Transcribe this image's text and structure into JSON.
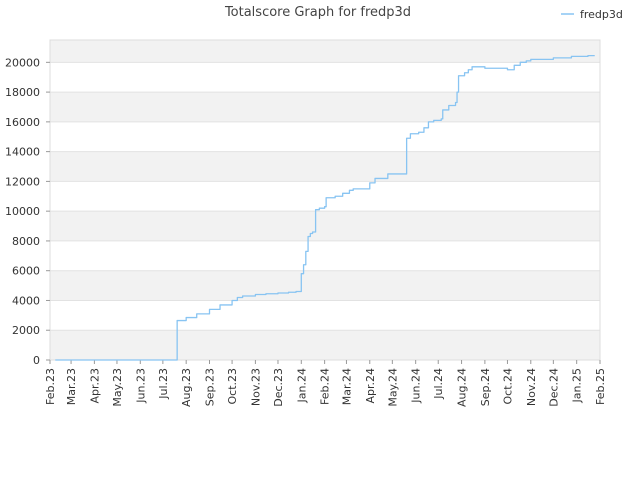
{
  "chart_data": {
    "type": "line",
    "title": "Totalscore Graph for fredp3d",
    "xlabel": "",
    "ylabel": "",
    "x_ticks": [
      "Feb.23",
      "Mar.23",
      "Apr.23",
      "May.23",
      "Jun.23",
      "Jul.23",
      "Aug.23",
      "Sep.23",
      "Oct.23",
      "Nov.23",
      "Dec.23",
      "Jan.24",
      "Feb.24",
      "Mar.24",
      "Apr.24",
      "May.24",
      "Jun.24",
      "Jul.24",
      "Aug.24",
      "Sep.24",
      "Oct.24",
      "Nov.24",
      "Dec.24",
      "Jan.25",
      "Feb.25"
    ],
    "xlim": [
      "2023-02-01",
      "2025-02-01"
    ],
    "y_ticks": [
      0,
      2000,
      4000,
      6000,
      8000,
      10000,
      12000,
      14000,
      16000,
      18000,
      20000
    ],
    "ylim": [
      0,
      21500
    ],
    "grid": true,
    "legend_position": "top-right",
    "series": [
      {
        "name": "fredp3d",
        "color": "#88c4f2",
        "step": true,
        "points": [
          [
            "2023-02-08",
            0
          ],
          [
            "2023-07-20",
            0
          ],
          [
            "2023-07-20",
            2650
          ],
          [
            "2023-08-01",
            2850
          ],
          [
            "2023-08-15",
            3100
          ],
          [
            "2023-09-01",
            3400
          ],
          [
            "2023-09-15",
            3700
          ],
          [
            "2023-10-01",
            4000
          ],
          [
            "2023-10-08",
            4200
          ],
          [
            "2023-10-15",
            4300
          ],
          [
            "2023-11-01",
            4400
          ],
          [
            "2023-11-15",
            4450
          ],
          [
            "2023-12-01",
            4500
          ],
          [
            "2023-12-15",
            4550
          ],
          [
            "2023-12-25",
            4600
          ],
          [
            "2024-01-01",
            4600
          ],
          [
            "2024-01-01",
            5800
          ],
          [
            "2024-01-04",
            6400
          ],
          [
            "2024-01-07",
            7300
          ],
          [
            "2024-01-10",
            8300
          ],
          [
            "2024-01-13",
            8500
          ],
          [
            "2024-01-16",
            8600
          ],
          [
            "2024-01-20",
            10100
          ],
          [
            "2024-01-25",
            10200
          ],
          [
            "2024-02-01",
            10300
          ],
          [
            "2024-02-03",
            10900
          ],
          [
            "2024-02-15",
            11000
          ],
          [
            "2024-02-25",
            11200
          ],
          [
            "2024-03-05",
            11400
          ],
          [
            "2024-03-10",
            11500
          ],
          [
            "2024-03-25",
            11500
          ],
          [
            "2024-04-01",
            11900
          ],
          [
            "2024-04-08",
            12200
          ],
          [
            "2024-04-20",
            12200
          ],
          [
            "2024-04-25",
            12500
          ],
          [
            "2024-05-20",
            12500
          ],
          [
            "2024-05-20",
            14900
          ],
          [
            "2024-05-25",
            15200
          ],
          [
            "2024-06-05",
            15300
          ],
          [
            "2024-06-12",
            15600
          ],
          [
            "2024-06-18",
            16000
          ],
          [
            "2024-06-25",
            16100
          ],
          [
            "2024-07-05",
            16200
          ],
          [
            "2024-07-07",
            16800
          ],
          [
            "2024-07-15",
            17100
          ],
          [
            "2024-07-24",
            17300
          ],
          [
            "2024-07-26",
            18000
          ],
          [
            "2024-07-28",
            19100
          ],
          [
            "2024-08-05",
            19300
          ],
          [
            "2024-08-10",
            19500
          ],
          [
            "2024-08-15",
            19700
          ],
          [
            "2024-08-25",
            19700
          ],
          [
            "2024-09-01",
            19600
          ],
          [
            "2024-09-30",
            19600
          ],
          [
            "2024-10-01",
            19500
          ],
          [
            "2024-10-09",
            19500
          ],
          [
            "2024-10-10",
            19800
          ],
          [
            "2024-10-18",
            20000
          ],
          [
            "2024-10-26",
            20100
          ],
          [
            "2024-11-01",
            20200
          ],
          [
            "2024-11-10",
            20200
          ],
          [
            "2024-11-25",
            20200
          ],
          [
            "2024-12-01",
            20300
          ],
          [
            "2024-12-20",
            20300
          ],
          [
            "2024-12-25",
            20400
          ],
          [
            "2025-01-15",
            20400
          ],
          [
            "2025-01-16",
            20450
          ],
          [
            "2025-01-25",
            20450
          ]
        ]
      }
    ]
  }
}
